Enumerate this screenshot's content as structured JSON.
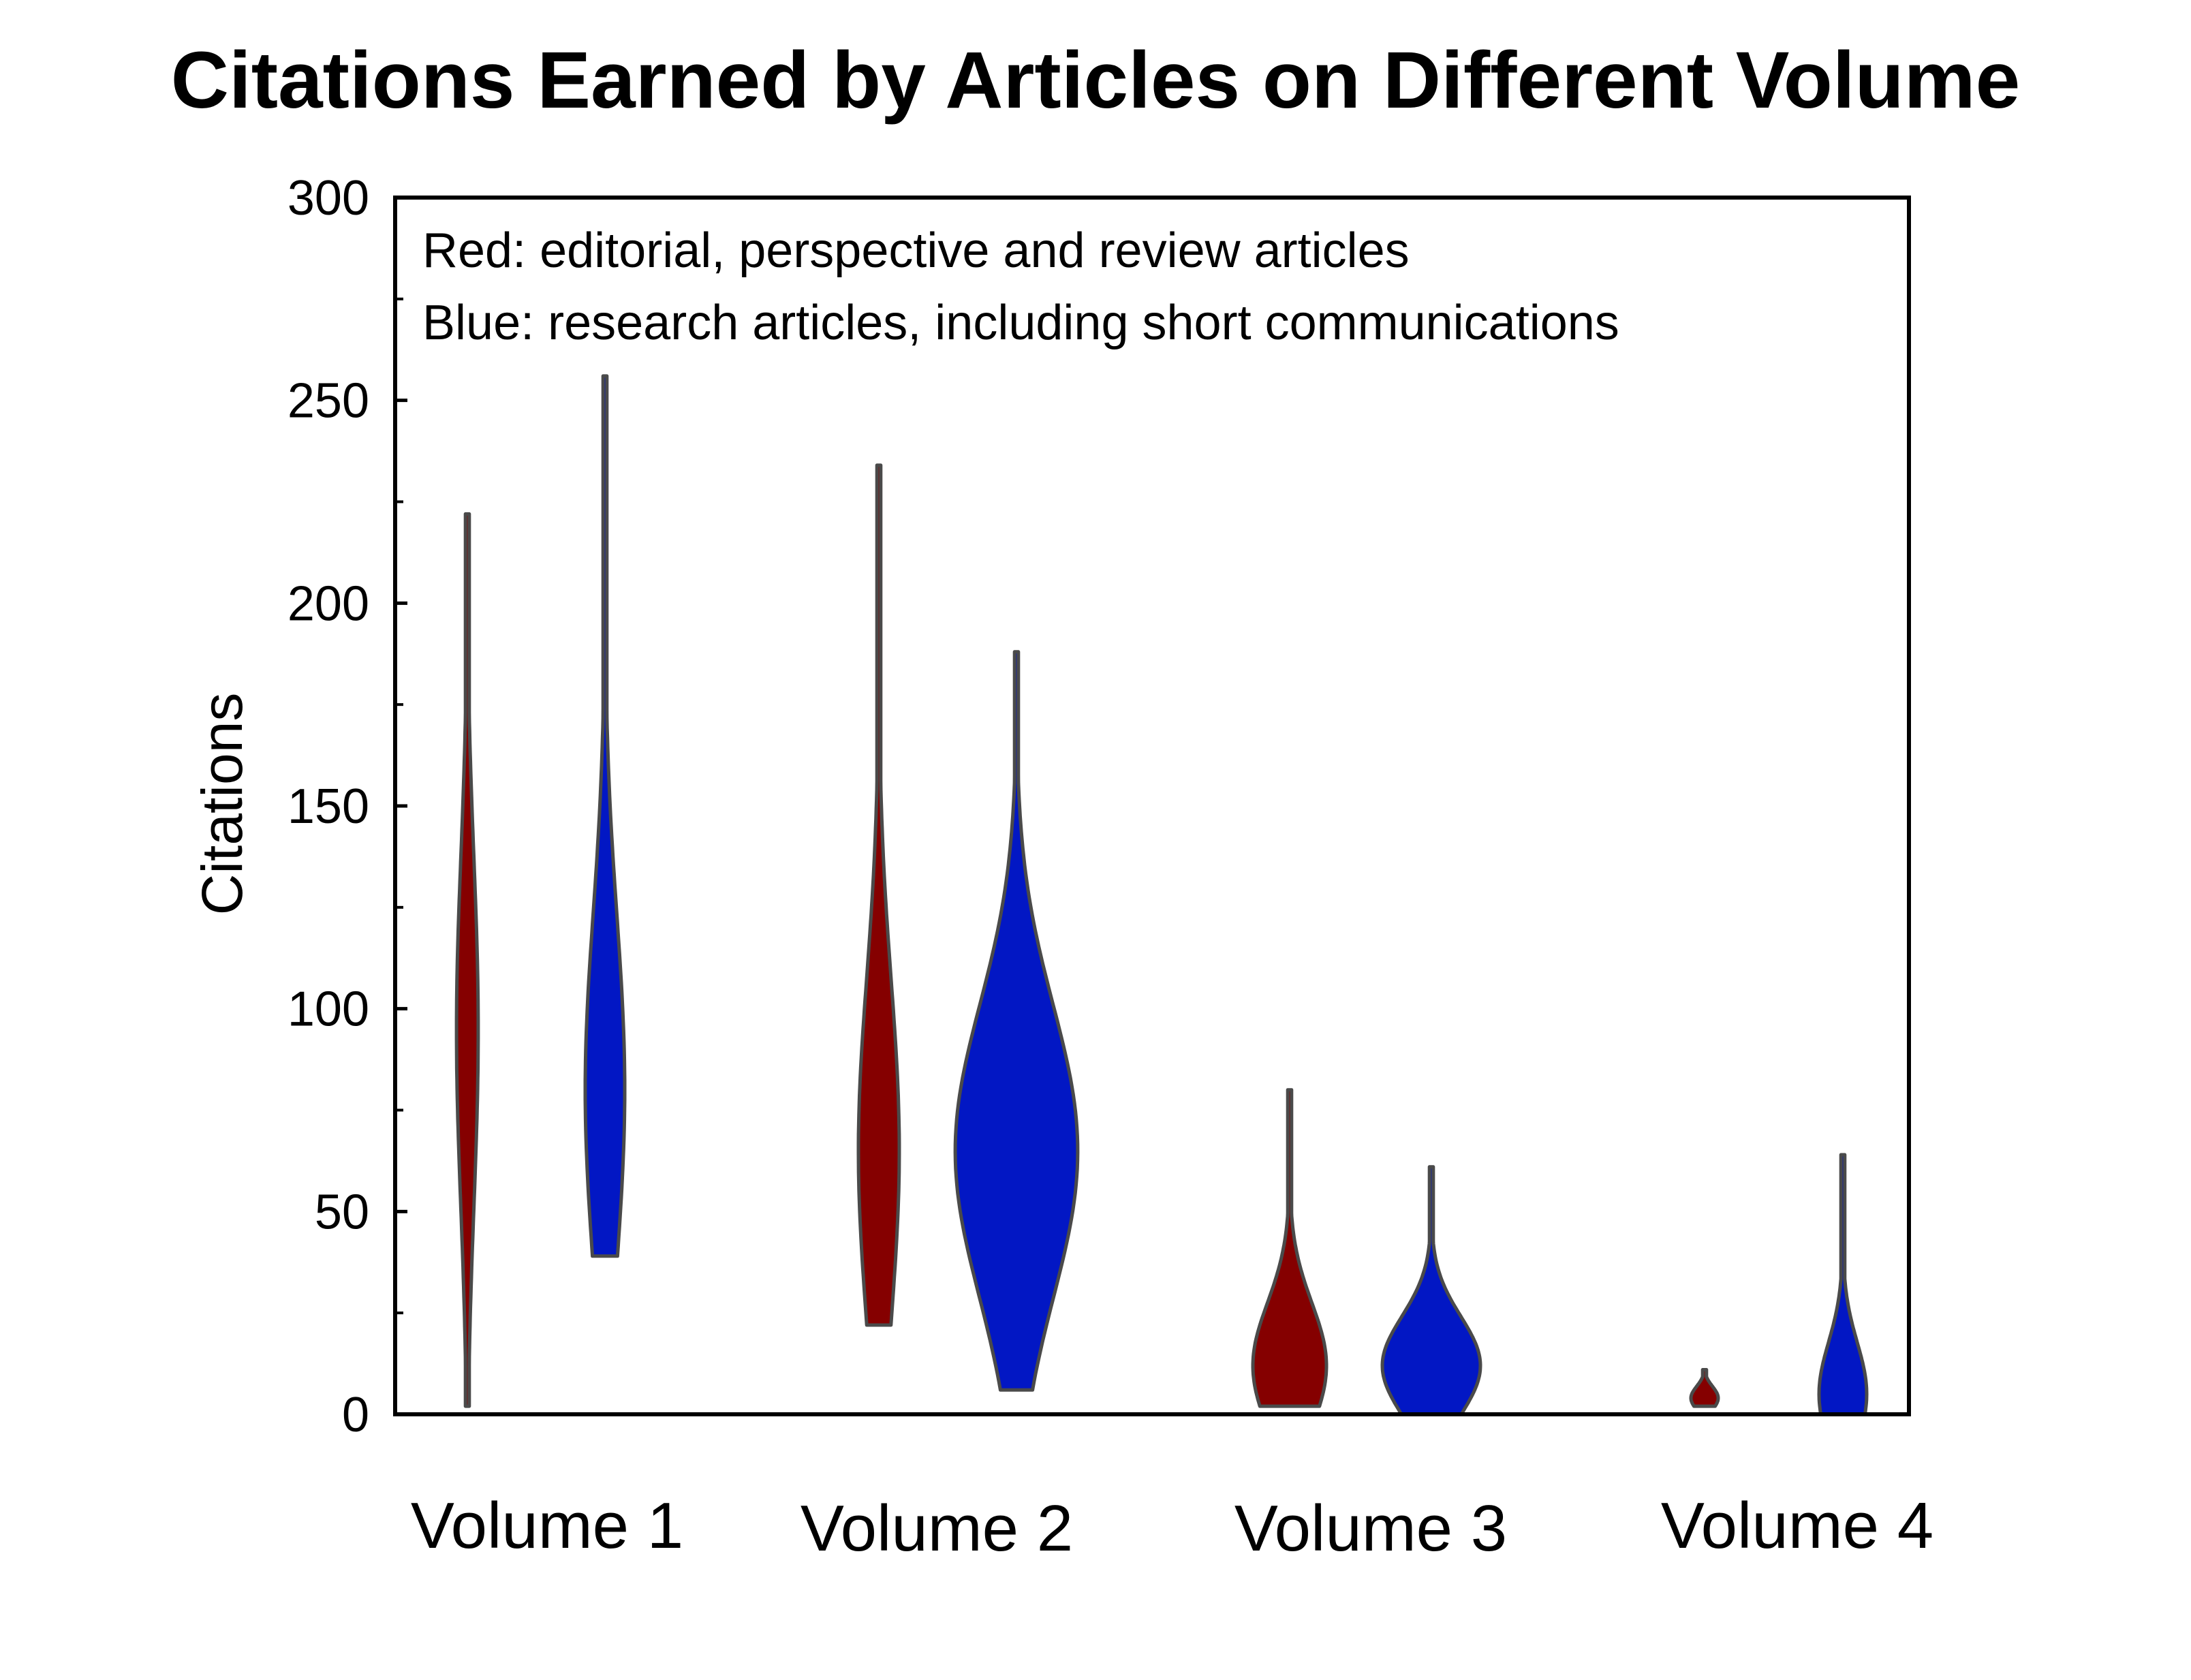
{
  "chart_data": {
    "type": "violin",
    "title": "Citations Earned by Articles on Different Volume",
    "xlabel": "",
    "ylabel": "Citations",
    "ylim": [
      0,
      300
    ],
    "yticks": [
      0,
      50,
      100,
      150,
      200,
      250,
      300
    ],
    "ytick_labels": [
      "0",
      "50",
      "100",
      "150",
      "200",
      "250",
      "300"
    ],
    "categories": [
      "Volume 1",
      "Volume 2",
      "Volume 3",
      "Volume 4"
    ],
    "annotations": [
      "Red: editorial, perspective and review articles",
      "Blue: research articles, including short communications"
    ],
    "grid": false,
    "legend": "none",
    "colors": {
      "red": "#850000",
      "blue": "#0217C4",
      "outline": "#4a4a4a"
    },
    "series": [
      {
        "color_key": "red",
        "min": [
          2,
          22,
          2,
          2
        ],
        "max": [
          222,
          234,
          80,
          11
        ],
        "mode": [
          95,
          65,
          12,
          4
        ]
      },
      {
        "color_key": "blue",
        "min": [
          39,
          6,
          0,
          0
        ],
        "max": [
          256,
          188,
          61,
          64
        ],
        "mode": [
          80,
          65,
          12,
          5
        ]
      }
    ]
  }
}
